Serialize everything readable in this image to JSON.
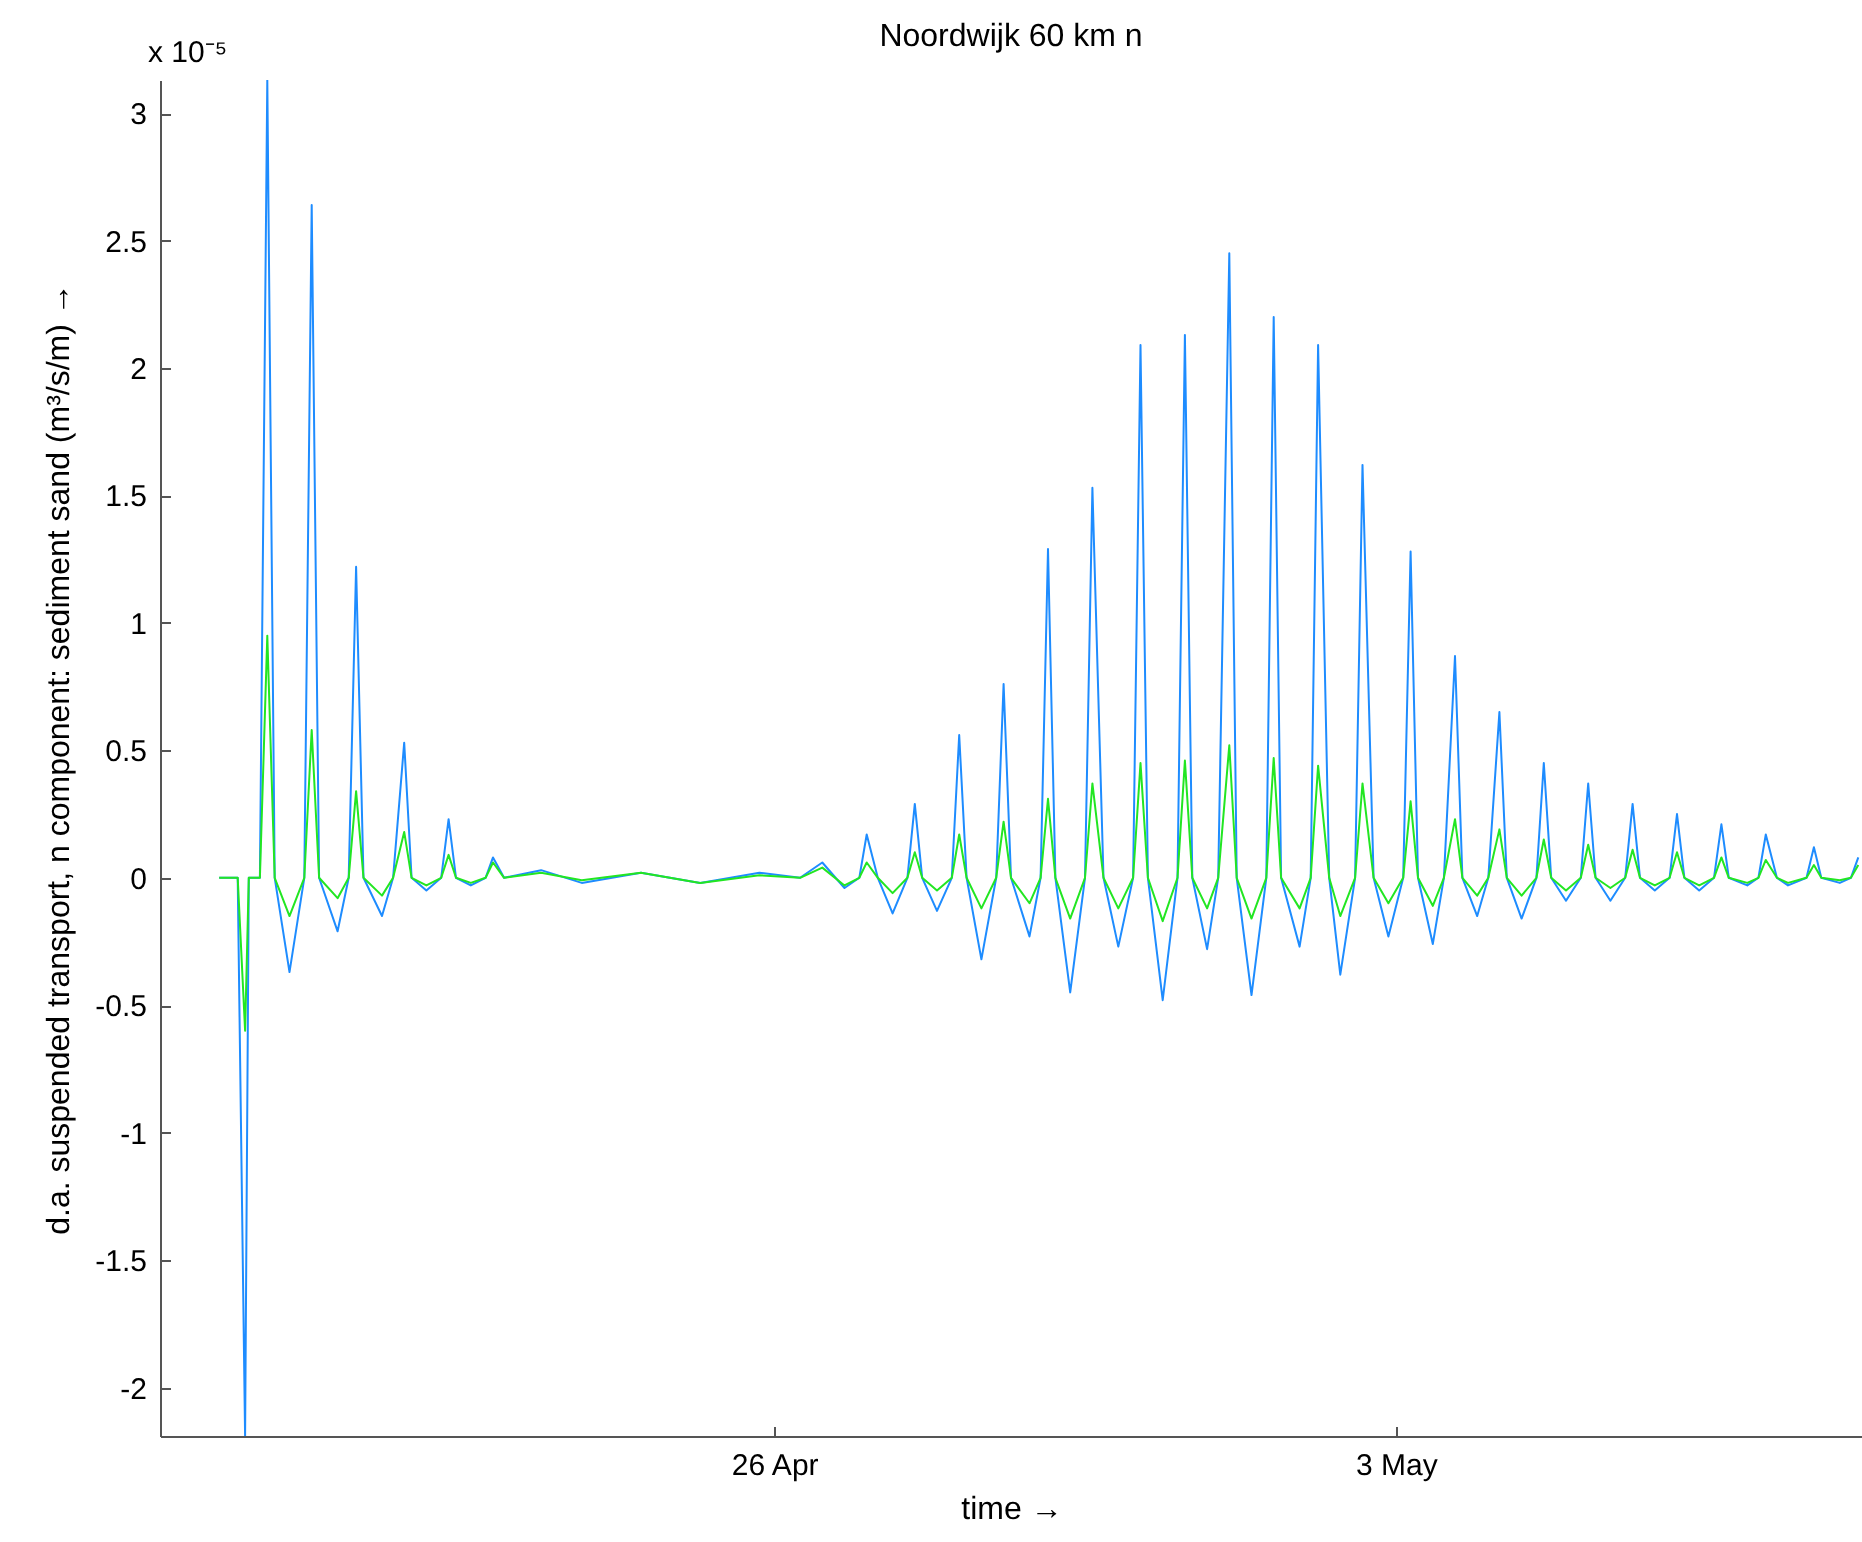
{
  "chart_data": {
    "type": "line",
    "title": "Noordwijk 60 km    n",
    "xlabel": "time →",
    "ylabel": "d.a. suspended transport, n component: sediment sand (m³/s/m) →",
    "annotations": [
      "x 10⁻⁵"
    ],
    "xlim": [
      "--04-19T02:00",
      "--05-08T06:00"
    ],
    "xticks": [
      {
        "value": "--04-26",
        "label": "26 Apr"
      },
      {
        "value": "--05-03",
        "label": "3 May"
      }
    ],
    "ylim": [
      -2.19,
      3.13
    ],
    "yticks": [
      -2,
      -1.5,
      -1,
      -0.5,
      0,
      0.5,
      1,
      1.5,
      2,
      2.5,
      3
    ],
    "x": [
      "--04-19T18:00",
      "--04-19T23:00",
      "--04-20T01:00",
      "--04-20T02:00",
      "--04-20T05:00",
      "--04-20T07:00",
      "--04-20T09:00",
      "--04-20T13:00",
      "--04-20T17:00",
      "--04-20T19:00",
      "--04-20T21:00",
      "--04-21T02:00",
      "--04-21T05:00",
      "--04-21T07:00",
      "--04-21T09:00",
      "--04-21T14:00",
      "--04-21T17:00",
      "--04-21T20:00",
      "--04-21T22:00",
      "--04-22T02:00",
      "--04-22T06:00",
      "--04-22T08:00",
      "--04-22T10:00",
      "--04-22T14:00",
      "--04-22T18:00",
      "--04-22T20:00",
      "--04-22T23:00",
      "--04-23T09:00",
      "--04-23T20:00",
      "--04-24T12:00",
      "--04-25T04:00",
      "--04-25T20:00",
      "--04-26T07:00",
      "--04-26T13:00",
      "--04-26T19:00",
      "--04-26T23:00",
      "--04-27T01:00",
      "--04-27T04:00",
      "--04-27T08:00",
      "--04-27T12:00",
      "--04-27T14:00",
      "--04-27T16:00",
      "--04-27T20:00",
      "--04-28T00:00",
      "--04-28T02:00",
      "--04-28T04:00",
      "--04-28T08:00",
      "--04-28T12:00",
      "--04-28T14:00",
      "--04-28T16:00",
      "--04-28T21:00",
      "--04-29T00:00",
      "--04-29T02:00",
      "--04-29T04:00",
      "--04-29T08:00",
      "--04-29T12:00",
      "--04-29T14:00",
      "--04-29T17:00",
      "--04-29T21:00",
      "--04-30T01:00",
      "--04-30T03:00",
      "--04-30T05:00",
      "--04-30T09:00",
      "--04-30T13:00",
      "--04-30T15:00",
      "--04-30T17:00",
      "--04-30T21:00",
      "--05-01T00:00",
      "--05-01T03:00",
      "--05-01T05:00",
      "--05-01T09:00",
      "--05-01T13:00",
      "--05-01T15:00",
      "--05-01T17:00",
      "--05-01T22:00",
      "--05-02T01:00",
      "--05-02T03:00",
      "--05-02T06:00",
      "--05-02T09:00",
      "--05-02T13:00",
      "--05-02T15:00",
      "--05-02T18:00",
      "--05-02T22:00",
      "--05-03T02:00",
      "--05-03T04:00",
      "--05-03T06:00",
      "--05-03T10:00",
      "--05-03T13:00",
      "--05-03T16:00",
      "--05-03T18:00",
      "--05-03T22:00",
      "--05-04T01:00",
      "--05-04T04:00",
      "--05-04T06:00",
      "--05-04T10:00",
      "--05-04T14:00",
      "--05-04T16:00",
      "--05-04T18:00",
      "--05-04T22:00",
      "--05-05T02:00",
      "--05-05T04:00",
      "--05-05T06:00",
      "--05-05T10:00",
      "--05-05T14:00",
      "--05-05T16:00",
      "--05-05T18:00",
      "--05-05T22:00",
      "--05-06T02:00",
      "--05-06T04:00",
      "--05-06T06:00",
      "--05-06T10:00",
      "--05-06T14:00",
      "--05-06T16:00",
      "--05-06T18:00",
      "--05-06T23:00",
      "--05-07T02:00",
      "--05-07T04:00",
      "--05-07T07:00",
      "--05-07T10:00",
      "--05-07T15:00",
      "--05-07T17:00",
      "--05-07T19:00",
      "--05-08T00:00",
      "--05-08T03:00",
      "--05-08T05:00"
    ],
    "series": [
      {
        "color": "#1e8cff",
        "values": [
          0,
          0,
          -2.19,
          0,
          0,
          3.13,
          0,
          -0.37,
          0,
          2.64,
          0,
          -0.21,
          0,
          1.22,
          0,
          -0.15,
          0,
          0.53,
          0,
          -0.05,
          0,
          0.23,
          0,
          -0.03,
          0,
          0.08,
          0,
          0.03,
          -0.02,
          0.02,
          -0.02,
          0.02,
          0,
          0.06,
          -0.04,
          0,
          0.17,
          0,
          -0.14,
          0,
          0.29,
          0,
          -0.13,
          0,
          0.56,
          0,
          -0.32,
          0,
          0.76,
          0,
          -0.23,
          0,
          1.29,
          0,
          -0.45,
          0,
          1.53,
          0,
          -0.27,
          0,
          2.09,
          0,
          -0.48,
          0,
          2.13,
          0,
          -0.28,
          0,
          2.45,
          0,
          -0.46,
          0,
          2.2,
          0,
          -0.27,
          0,
          2.09,
          0,
          -0.38,
          0,
          1.62,
          0,
          -0.23,
          0,
          1.28,
          0,
          -0.26,
          0,
          0.87,
          0,
          -0.15,
          0,
          0.65,
          0,
          -0.16,
          0,
          0.45,
          0,
          -0.09,
          0,
          0.37,
          0,
          -0.09,
          0,
          0.29,
          0,
          -0.05,
          0,
          0.25,
          0,
          -0.05,
          0,
          0.21,
          0,
          -0.03,
          0,
          0.17,
          0,
          -0.03,
          0,
          0.12,
          0,
          -0.02,
          0,
          0.08
        ]
      },
      {
        "color": "#22e622",
        "values": [
          0,
          0,
          -0.6,
          0,
          0,
          0.95,
          0,
          -0.15,
          0,
          0.58,
          0,
          -0.08,
          0,
          0.34,
          0,
          -0.07,
          0,
          0.18,
          0,
          -0.03,
          0,
          0.09,
          0,
          -0.02,
          0,
          0.06,
          0,
          0.02,
          -0.01,
          0.02,
          -0.02,
          0.01,
          0,
          0.04,
          -0.03,
          0,
          0.06,
          0,
          -0.06,
          0,
          0.1,
          0,
          -0.05,
          0,
          0.17,
          0,
          -0.12,
          0,
          0.22,
          0,
          -0.1,
          0,
          0.31,
          0,
          -0.16,
          0,
          0.37,
          0,
          -0.12,
          0,
          0.45,
          0,
          -0.17,
          0,
          0.46,
          0,
          -0.12,
          0,
          0.52,
          0,
          -0.16,
          0,
          0.47,
          0,
          -0.12,
          0,
          0.44,
          0,
          -0.15,
          0,
          0.37,
          0,
          -0.1,
          0,
          0.3,
          0,
          -0.11,
          0,
          0.23,
          0,
          -0.07,
          0,
          0.19,
          0,
          -0.07,
          0,
          0.15,
          0,
          -0.05,
          0,
          0.13,
          0,
          -0.04,
          0,
          0.11,
          0,
          -0.03,
          0,
          0.1,
          0,
          -0.03,
          0,
          0.08,
          0,
          -0.02,
          0,
          0.07,
          0,
          -0.02,
          0,
          0.05,
          0,
          -0.01,
          0,
          0.05
        ]
      }
    ]
  }
}
